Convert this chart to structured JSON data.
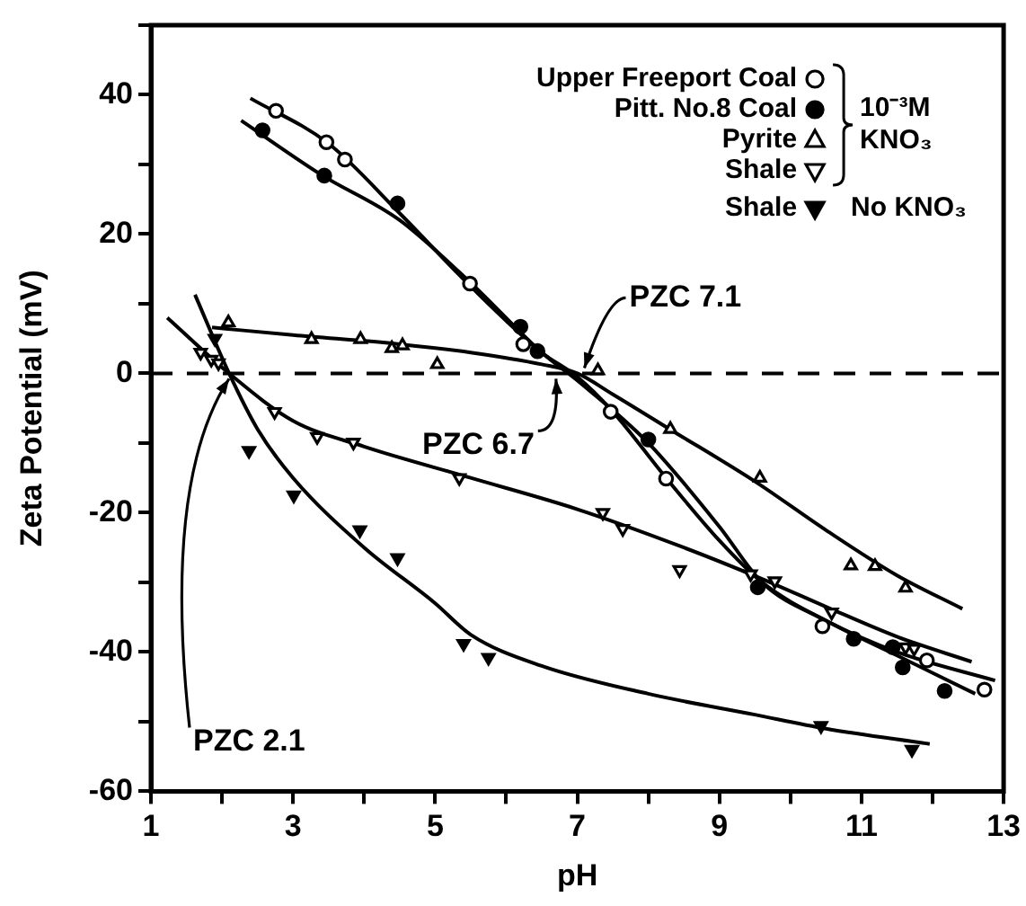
{
  "chart_data": {
    "type": "scatter",
    "xlabel": "pH",
    "ylabel": "Zeta Potential (mV)",
    "xlim": [
      1,
      13
    ],
    "xticks": [
      1,
      {
        "value": 2,
        "label": null
      },
      3,
      {
        "value": 4,
        "label": null
      },
      5,
      {
        "value": 6,
        "label": null
      },
      7,
      {
        "value": 8,
        "label": null
      },
      9,
      {
        "value": 10,
        "label": null
      },
      11,
      {
        "value": 12,
        "label": null
      },
      13
    ],
    "ylim": [
      -60,
      50
    ],
    "yticks": [
      -60,
      {
        "value": -50,
        "label": null
      },
      -40,
      {
        "value": -30,
        "label": null
      },
      -20,
      {
        "value": -10,
        "label": null
      },
      0,
      {
        "value": 10,
        "label": null
      },
      20,
      {
        "value": 30,
        "label": null
      },
      40,
      {
        "value": 50,
        "label": null
      }
    ],
    "grid": false,
    "legend": "top right",
    "series": [
      {
        "name": "Upper Freeport Coal",
        "type": "scatter",
        "marker": "circle-open",
        "color": "#000000",
        "x": [
          2.76,
          3.47,
          3.73,
          5.49,
          6.24,
          7.47,
          8.25,
          10.45,
          11.92,
          12.73
        ],
        "values": [
          37.7,
          33.2,
          30.7,
          12.9,
          4.2,
          -5.5,
          -15.1,
          -36.3,
          -41.2,
          -45.4
        ]
      },
      {
        "name": "Pitt. No.8 Coal",
        "type": "scatter",
        "marker": "circle",
        "color": "#000000",
        "x": [
          2.57,
          3.44,
          4.47,
          6.2,
          6.44,
          8.0,
          9.54,
          10.89,
          11.44,
          11.58,
          12.17
        ],
        "values": [
          34.9,
          28.4,
          24.4,
          6.7,
          3.2,
          -9.5,
          -30.7,
          -38.1,
          -39.3,
          -42.2,
          -45.6
        ]
      },
      {
        "name": "Pyrite",
        "type": "scatter",
        "marker": "triangle-open",
        "color": "#000000",
        "x": [
          2.09,
          3.26,
          3.95,
          4.39,
          4.54,
          5.03,
          7.29,
          8.31,
          9.57,
          10.85,
          11.19,
          11.62
        ],
        "values": [
          7.3,
          4.9,
          4.9,
          3.6,
          4.0,
          1.3,
          0.4,
          -8.0,
          -15.0,
          -27.6,
          -27.7,
          -30.8
        ]
      },
      {
        "name": "Shale",
        "type": "scatter",
        "marker": "triangle-down-open",
        "color": "#000000",
        "x": [
          1.7,
          1.85,
          1.95,
          2.74,
          3.34,
          3.85,
          5.34,
          7.36,
          7.64,
          8.44,
          9.44,
          9.78,
          10.58,
          11.62,
          11.74
        ],
        "values": [
          3,
          2,
          1.5,
          -5.5,
          -9.1,
          -9.9,
          -15.0,
          -20.0,
          -22.3,
          -28.2,
          -28.8,
          -29.8,
          -34.3,
          -39.3,
          -39.5
        ]
      },
      {
        "name": "Shale",
        "type": "scatter",
        "marker": "triangle-down",
        "color": "#000000",
        "x": [
          1.9,
          2.38,
          3.01,
          3.94,
          4.47,
          5.4,
          5.75,
          10.43,
          11.71
        ],
        "values": [
          5.0,
          -11.1,
          -17.5,
          -22.5,
          -26.5,
          -38.8,
          -40.8,
          -50.6,
          -54.0
        ]
      },
      {
        "type": "line",
        "marker": "none",
        "color": "#000000",
        "x": [
          2.4,
          3.5,
          4.5,
          5.5,
          6.5,
          7,
          7.5,
          8.25,
          9,
          9.6,
          10.5,
          11.5,
          12.88
        ],
        "values": [
          39.5,
          33,
          23,
          12.5,
          3,
          -0.5,
          -5.5,
          -15,
          -24,
          -30,
          -35.5,
          -40,
          -44.1
        ]
      },
      {
        "type": "line",
        "marker": "none",
        "color": "#000000",
        "x": [
          2.27,
          3.4,
          4.5,
          5.5,
          6.5,
          7,
          8,
          9,
          9.6,
          10.5,
          11.5,
          12.6
        ],
        "values": [
          36.3,
          28.5,
          22,
          13,
          3,
          -1,
          -10,
          -22,
          -30,
          -35.5,
          -40.5,
          -46
        ]
      },
      {
        "type": "line",
        "marker": "none",
        "color": "#000000",
        "x": [
          1.86,
          3,
          4.5,
          5.5,
          6.5,
          7,
          7.5,
          8.3,
          9.5,
          10.5,
          11.5,
          12.42
        ],
        "values": [
          6.6,
          5.5,
          4.2,
          3,
          1.3,
          0,
          -3,
          -8,
          -15.5,
          -22.5,
          -29,
          -33.8
        ]
      },
      {
        "type": "line",
        "marker": "none",
        "color": "#000000",
        "x": [
          1.23,
          2.1,
          3,
          4,
          5.5,
          7,
          8.5,
          9.6,
          10.5,
          11.5,
          12.55
        ],
        "values": [
          8,
          0,
          -6.8,
          -10.5,
          -15,
          -19.5,
          -25,
          -29.5,
          -33.5,
          -37.8,
          -41.4
        ]
      },
      {
        "type": "line",
        "marker": "none",
        "color": "#000000",
        "x": [
          1.62,
          2.1,
          2.5,
          3,
          4,
          5,
          5.5,
          6.5,
          8,
          9.5,
          10.5,
          11.96
        ],
        "values": [
          11.3,
          0,
          -8,
          -15,
          -25,
          -33,
          -37.5,
          -42,
          -46,
          -49,
          -51,
          -53.2
        ]
      }
    ],
    "ref_lines": [
      {
        "axis": "y",
        "value": 0,
        "line_style": "dashed",
        "color": "#000000"
      }
    ],
    "annotations": [
      {
        "text": "PZC 2.1",
        "x": 2.1,
        "y": 0
      },
      {
        "text": "PZC 6.7",
        "x": 6.7,
        "y": 0
      },
      {
        "text": "PZC 7.1",
        "x": 7.1,
        "y": 0
      },
      "10⁻³M KNO₃",
      "No KNO₃"
    ]
  }
}
